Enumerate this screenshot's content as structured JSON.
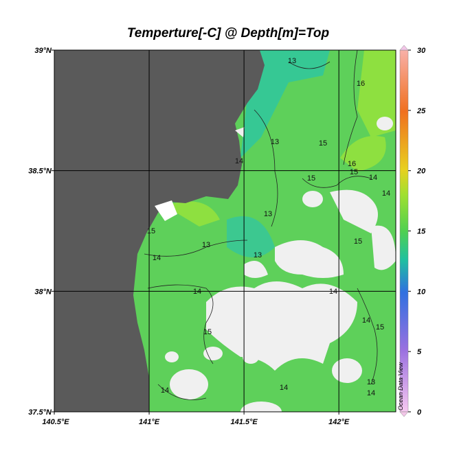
{
  "chart_data": {
    "type": "map",
    "title": "Temperture[-C] @ Depth[m]=Top",
    "xlim": [
      140.5,
      142.3
    ],
    "ylim": [
      37.5,
      39
    ],
    "xticks": [
      {
        "value": 140.5,
        "label": "140.5°E"
      },
      {
        "value": 141,
        "label": "141°E"
      },
      {
        "value": 141.5,
        "label": "141.5°E"
      },
      {
        "value": 142,
        "label": "142°E"
      }
    ],
    "yticks": [
      {
        "value": 37.5,
        "label": "37.5°N"
      },
      {
        "value": 38,
        "label": "38°N"
      },
      {
        "value": 38.5,
        "label": "38.5°N"
      },
      {
        "value": 39,
        "label": "39°N"
      }
    ],
    "grid": true,
    "colorbar": {
      "lim": [
        0,
        30
      ],
      "ticks": [
        0,
        5,
        10,
        15,
        20,
        25,
        30
      ]
    },
    "contour_labels": [
      13,
      16,
      13,
      14,
      15,
      16,
      15,
      14,
      14,
      15,
      13,
      15,
      13,
      14,
      13,
      15,
      14,
      15,
      14,
      14,
      15,
      14,
      14,
      13,
      14
    ],
    "watermark": "Ocean Data View"
  }
}
